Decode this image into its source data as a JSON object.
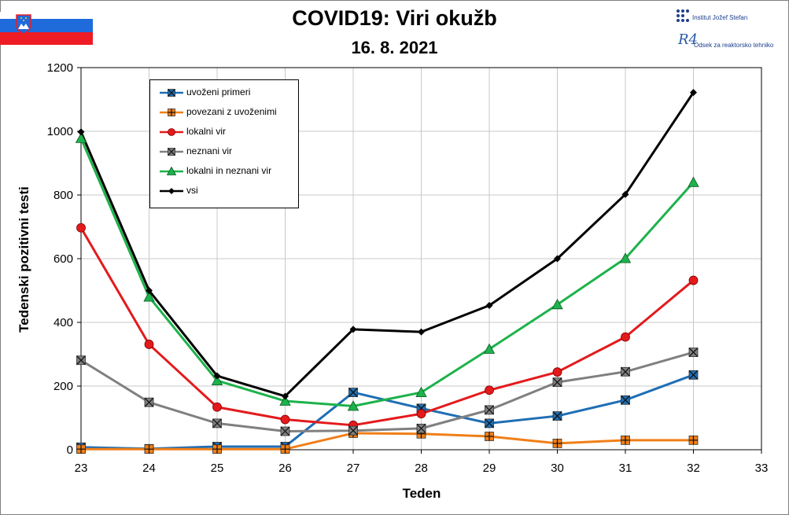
{
  "header": {
    "title": "COVID19: Viri okužb",
    "date": "16. 8. 2021",
    "logo_ijs": "Institut Jožef Stefan",
    "logo_r4_mark": "R4",
    "logo_r4": "Odsek za reaktorsko tehniko"
  },
  "chart_data": {
    "type": "line",
    "title": "COVID19: Viri okužb",
    "subtitle": "16. 8. 2021",
    "xlabel": "Teden",
    "ylabel": "Tedenski pozitivni testi",
    "x": [
      23,
      24,
      25,
      26,
      27,
      28,
      29,
      30,
      31,
      32
    ],
    "xlim": [
      23,
      33
    ],
    "ylim": [
      0,
      1200
    ],
    "xticks": [
      "23",
      "24",
      "25",
      "26",
      "27",
      "28",
      "29",
      "30",
      "31",
      "32",
      "33"
    ],
    "yticks": [
      "0",
      "200",
      "400",
      "600",
      "800",
      "1000",
      "1200"
    ],
    "grid": true,
    "legend_position": "top-left",
    "series": [
      {
        "name": "uvoženi primeri",
        "color": "#1f6eb4",
        "marker": "x-square",
        "values": [
          8,
          3,
          10,
          10,
          180,
          130,
          83,
          106,
          156,
          235
        ]
      },
      {
        "name": "povezani z uvoženimi",
        "color": "#f07f17",
        "marker": "plus-square",
        "values": [
          2,
          2,
          2,
          2,
          52,
          50,
          42,
          20,
          30,
          30
        ]
      },
      {
        "name": "lokalni vir",
        "color": "#e31a1c",
        "marker": "circle",
        "values": [
          697,
          331,
          134,
          95,
          77,
          113,
          187,
          244,
          354,
          532
        ]
      },
      {
        "name": "neznani vir",
        "color": "#808080",
        "marker": "x-square",
        "values": [
          281,
          149,
          83,
          58,
          60,
          67,
          125,
          212,
          245,
          306
        ]
      },
      {
        "name": "lokalni in neznani vir",
        "color": "#1db24b",
        "marker": "triangle",
        "values": [
          978,
          480,
          217,
          153,
          137,
          180,
          316,
          456,
          601,
          840
        ]
      },
      {
        "name": "vsi",
        "color": "#000000",
        "marker": "diamond",
        "values": [
          998,
          500,
          232,
          168,
          378,
          370,
          453,
          600,
          802,
          1122
        ]
      }
    ]
  }
}
